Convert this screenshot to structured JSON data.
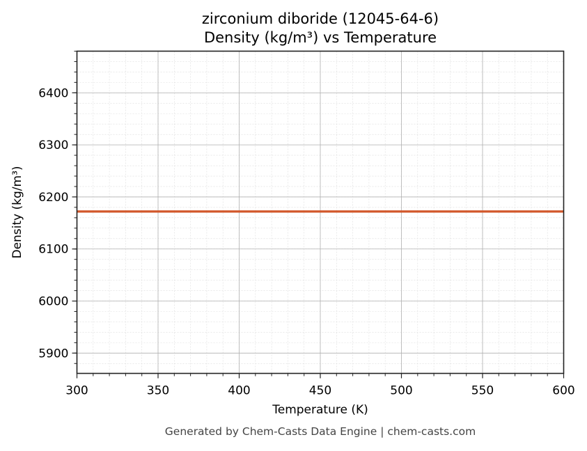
{
  "chart_data": {
    "type": "line",
    "title": "zirconium diboride (12045-64-6)",
    "subtitle": "Density (kg/m³) vs Temperature",
    "xlabel": "Temperature (K)",
    "ylabel": "Density (kg/m³)",
    "xlim": [
      300,
      600
    ],
    "ylim": [
      5861,
      6480
    ],
    "x_ticks": [
      300,
      350,
      400,
      450,
      500,
      550,
      600
    ],
    "y_ticks": [
      5900,
      6000,
      6100,
      6200,
      6300,
      6400
    ],
    "grid": true,
    "legend": null,
    "series": [
      {
        "name": "Density",
        "color": "#d2572a",
        "x": [
          300,
          350,
          400,
          450,
          500,
          550,
          600
        ],
        "y": [
          6172,
          6172,
          6172,
          6172,
          6172,
          6172,
          6172
        ]
      }
    ]
  },
  "footer": "Generated by Chem-Casts Data Engine | chem-casts.com"
}
